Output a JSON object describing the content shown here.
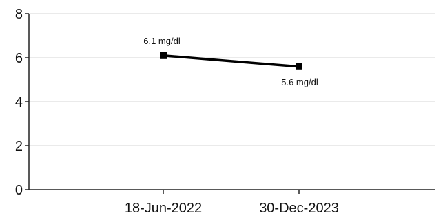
{
  "chart_data": {
    "type": "line",
    "title": "",
    "xlabel": "",
    "ylabel": "",
    "categories": [
      "18-Jun-2022",
      "30-Dec-2023"
    ],
    "series": [
      {
        "values": [
          6.1,
          5.6
        ],
        "data_labels": [
          "6.1 mg/dl",
          "5.6 mg/dl"
        ],
        "color": "#000000"
      }
    ],
    "ylim": [
      0,
      8
    ],
    "yticks": [
      0,
      2,
      4,
      6,
      8
    ],
    "ytick_labels": [
      "0",
      "2",
      "4",
      "6",
      "8"
    ],
    "grid": true,
    "legend": "none"
  }
}
